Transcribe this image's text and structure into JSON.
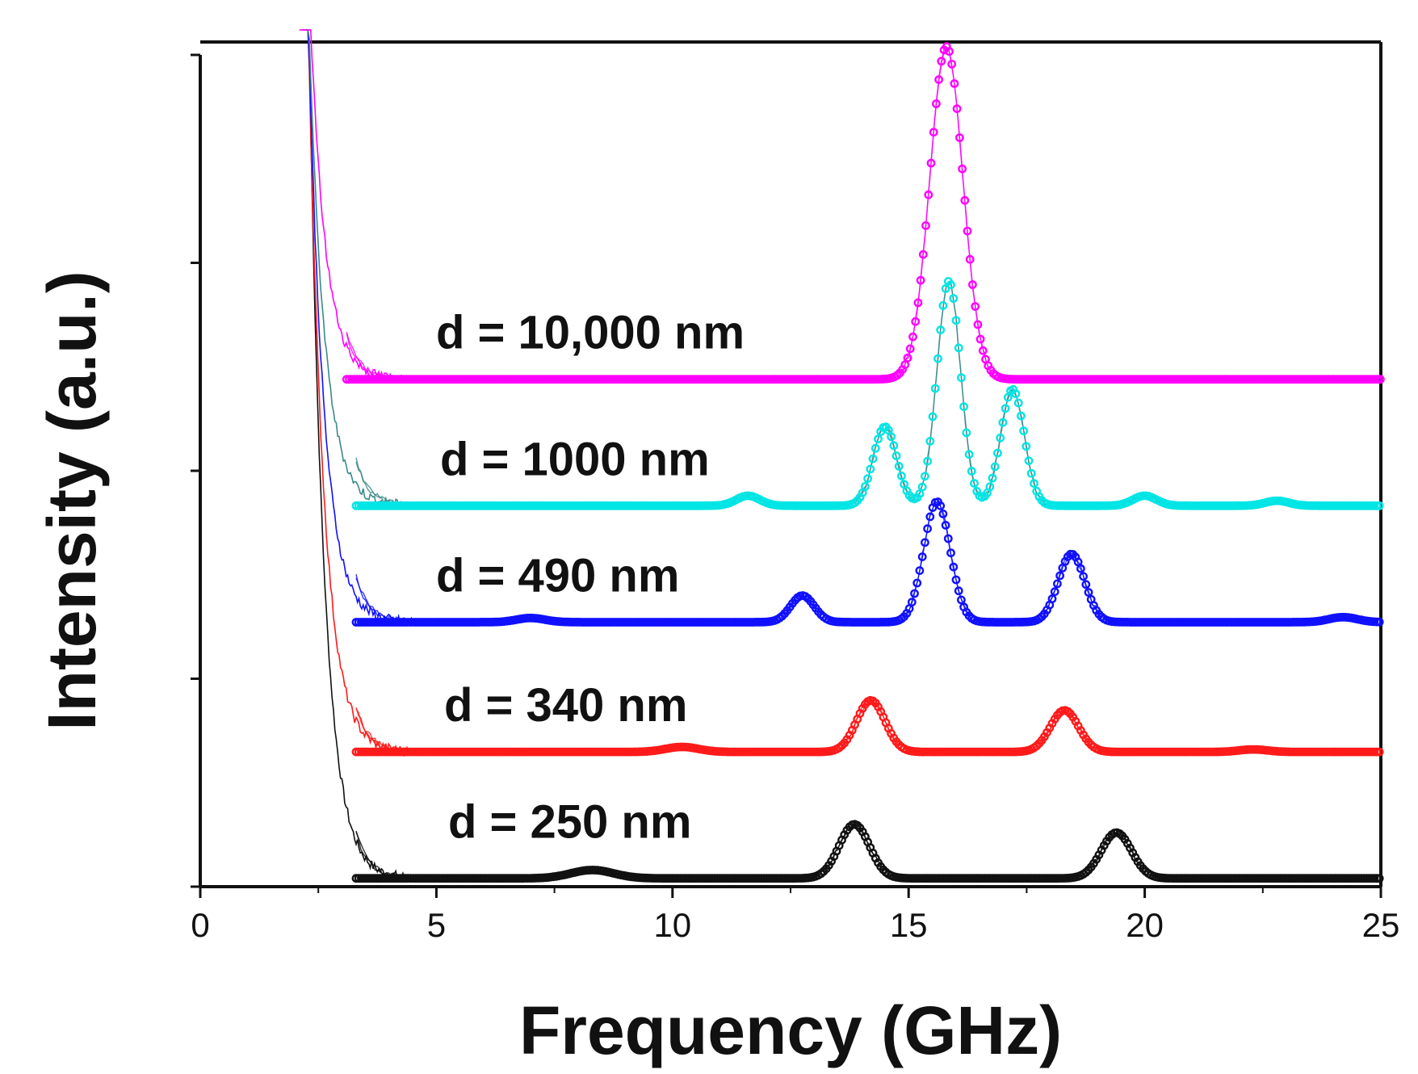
{
  "chart_data": {
    "type": "line",
    "title": "",
    "xlabel": "Frequency (GHz)",
    "ylabel": "Intensity (a.u.)",
    "xlim": [
      0,
      25
    ],
    "ylim": [
      0,
      10
    ],
    "x_ticks": [
      "0",
      "5",
      "10",
      "15",
      "20",
      "25"
    ],
    "x_tick_values": [
      0,
      5,
      10,
      15,
      20,
      25
    ],
    "y_tick_values": [
      0,
      2.5,
      5,
      7.5,
      10
    ],
    "grid": false,
    "legend": "inline labels",
    "series": [
      {
        "name": "d = 10,000 nm",
        "color": "#ff00ff",
        "baseline": 6.1,
        "x_start": 3.1,
        "x_end": 25,
        "peaks": [
          {
            "x": 15.8,
            "height": 4.0,
            "width": 0.35
          }
        ]
      },
      {
        "name": "d = 1000 nm",
        "color": "#00e5e5",
        "trace_color": "#3a8a8a",
        "baseline": 4.58,
        "x_start": 3.3,
        "x_end": 25,
        "peaks": [
          {
            "x": 11.6,
            "height": 0.12,
            "width": 0.25
          },
          {
            "x": 14.5,
            "height": 0.95,
            "width": 0.25
          },
          {
            "x": 15.85,
            "height": 2.7,
            "width": 0.25
          },
          {
            "x": 17.2,
            "height": 1.4,
            "width": 0.25
          },
          {
            "x": 20.0,
            "height": 0.12,
            "width": 0.25
          },
          {
            "x": 22.8,
            "height": 0.06,
            "width": 0.25
          }
        ]
      },
      {
        "name": "d = 490 nm",
        "color": "#1010ff",
        "baseline": 3.18,
        "x_start": 3.3,
        "x_end": 25,
        "peaks": [
          {
            "x": 7.0,
            "height": 0.05,
            "width": 0.3
          },
          {
            "x": 12.75,
            "height": 0.32,
            "width": 0.25
          },
          {
            "x": 15.6,
            "height": 1.45,
            "width": 0.28
          },
          {
            "x": 18.45,
            "height": 0.82,
            "width": 0.28
          },
          {
            "x": 24.2,
            "height": 0.06,
            "width": 0.3
          }
        ]
      },
      {
        "name": "d = 340 nm",
        "color": "#ff1a1a",
        "baseline": 1.62,
        "x_start": 3.3,
        "x_end": 25,
        "peaks": [
          {
            "x": 10.2,
            "height": 0.06,
            "width": 0.35
          },
          {
            "x": 14.2,
            "height": 0.62,
            "width": 0.3
          },
          {
            "x": 18.3,
            "height": 0.5,
            "width": 0.3
          },
          {
            "x": 22.3,
            "height": 0.03,
            "width": 0.3
          }
        ]
      },
      {
        "name": "d = 250 nm",
        "color": "#111111",
        "baseline": 0.1,
        "x_start": 3.3,
        "x_end": 25,
        "peaks": [
          {
            "x": 8.3,
            "height": 0.1,
            "width": 0.45
          },
          {
            "x": 13.85,
            "height": 0.65,
            "width": 0.32
          },
          {
            "x": 19.4,
            "height": 0.55,
            "width": 0.32
          }
        ]
      }
    ]
  }
}
